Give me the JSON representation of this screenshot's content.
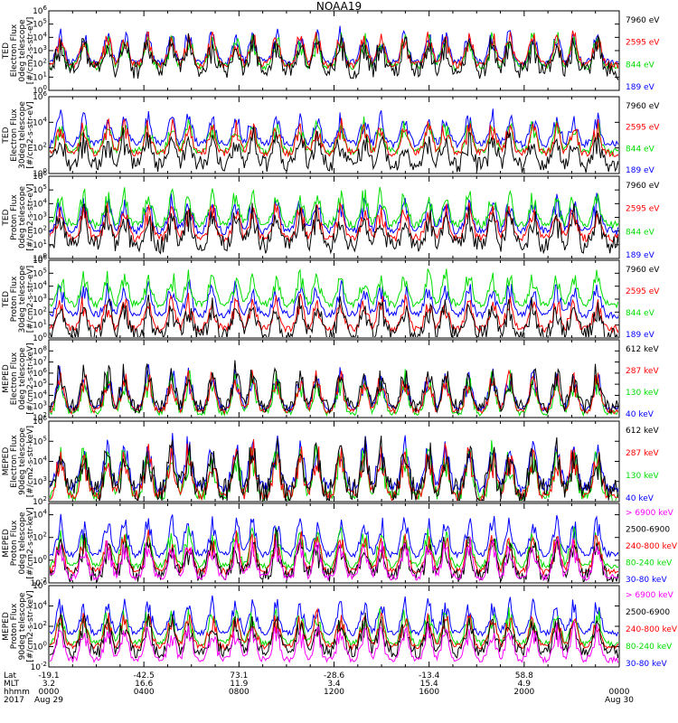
{
  "title": "NOAA19",
  "colors": {
    "black": "#000000",
    "red": "#ff0000",
    "green": "#00dd00",
    "blue": "#0000ff",
    "magenta": "#ff00ff"
  },
  "chart_data": [
    {
      "type": "line",
      "instrument": "TED",
      "ylabel": [
        "TED",
        "Electron Flux",
        "0deg telescope",
        "[#/cm2-s-str-eV]"
      ],
      "yscale": "log",
      "ylim": [
        1,
        1000000
      ],
      "y_ticks": [
        "10^0",
        "10^1",
        "10^2",
        "10^3",
        "10^4",
        "10^5",
        "10^6"
      ],
      "series": [
        {
          "name": "7960 eV",
          "color": "black",
          "base": 30
        },
        {
          "name": "2595 eV",
          "color": "red",
          "base": 80
        },
        {
          "name": "844 eV",
          "color": "green",
          "base": 60
        },
        {
          "name": "189 eV",
          "color": "blue",
          "base": 120
        }
      ]
    },
    {
      "type": "line",
      "instrument": "TED",
      "ylabel": [
        "TED",
        "Electron Flux",
        "30deg telescope",
        "[#/cm2-s-str-eV]"
      ],
      "yscale": "log",
      "ylim": [
        1,
        1000000
      ],
      "y_ticks": [
        "10^0",
        "10^2",
        "10^4",
        "10^6"
      ],
      "series": [
        {
          "name": "7960 eV",
          "color": "black",
          "base": 5
        },
        {
          "name": "2595 eV",
          "color": "red",
          "base": 40
        },
        {
          "name": "844 eV",
          "color": "green",
          "base": 50
        },
        {
          "name": "189 eV",
          "color": "blue",
          "base": 200
        }
      ]
    },
    {
      "type": "line",
      "instrument": "TED",
      "ylabel": [
        "TED",
        "Proton Flux",
        "0deg telescope",
        "[#/cm2-s-str-eV]"
      ],
      "yscale": "log",
      "ylim": [
        1,
        1000000
      ],
      "y_ticks": [
        "10^0",
        "10^1",
        "10^2",
        "10^3",
        "10^4",
        "10^5",
        "10^6"
      ],
      "series": [
        {
          "name": "7960 eV",
          "color": "black",
          "base": 10
        },
        {
          "name": "2595 eV",
          "color": "red",
          "base": 30
        },
        {
          "name": "844 eV",
          "color": "green",
          "base": 300
        },
        {
          "name": "189 eV",
          "color": "blue",
          "base": 100
        }
      ]
    },
    {
      "type": "line",
      "instrument": "TED",
      "ylabel": [
        "TED",
        "Proton Flux",
        "30deg telescope",
        "[#/cm2-s-str-eV]"
      ],
      "yscale": "log",
      "ylim": [
        1,
        1000000
      ],
      "y_ticks": [
        "10^0",
        "10^1",
        "10^2",
        "10^3",
        "10^4",
        "10^5",
        "10^6"
      ],
      "series": [
        {
          "name": "7960 eV",
          "color": "black",
          "base": 2
        },
        {
          "name": "2595 eV",
          "color": "red",
          "base": 5
        },
        {
          "name": "844 eV",
          "color": "green",
          "base": 400
        },
        {
          "name": "189 eV",
          "color": "blue",
          "base": 60
        }
      ]
    },
    {
      "type": "line",
      "instrument": "MEPED",
      "ylabel": [
        "MEPED",
        "Electron Flux",
        "0deg telescope",
        "[#/cm2-s-str-keV]"
      ],
      "yscale": "log",
      "ylim": [
        100,
        1000000000
      ],
      "y_ticks": [
        "10^2",
        "10^3",
        "10^4",
        "10^5",
        "10^6",
        "10^7",
        "10^8"
      ],
      "series": [
        {
          "name": "612 keV",
          "color": "black",
          "base": 1000
        },
        {
          "name": "287 keV",
          "color": "red",
          "base": 400
        },
        {
          "name": "130 keV",
          "color": "green",
          "base": 250
        },
        {
          "name": "40 keV",
          "color": "blue",
          "base": 600
        }
      ]
    },
    {
      "type": "line",
      "instrument": "MEPED",
      "ylabel": [
        "MEPED",
        "Electron Flux",
        "90deg telescope",
        "[#/cm2-s-str-keV]"
      ],
      "yscale": "log",
      "ylim": [
        100,
        1000000
      ],
      "y_ticks": [
        "10^2",
        "10^3",
        "10^4",
        "10^5",
        "10^6"
      ],
      "series": [
        {
          "name": "612 keV",
          "color": "black",
          "base": 300
        },
        {
          "name": "287 keV",
          "color": "red",
          "base": 200
        },
        {
          "name": "130 keV",
          "color": "green",
          "base": 180
        },
        {
          "name": "40 keV",
          "color": "blue",
          "base": 500
        }
      ]
    },
    {
      "type": "line",
      "instrument": "MEPED",
      "ylabel": [
        "MEPED",
        "Proton Flux",
        "0deg telescope",
        "[#/cm2-s-str-keV]"
      ],
      "yscale": "log",
      "ylim": [
        0.01,
        100000
      ],
      "y_ticks": [
        "10^-2",
        "10^0",
        "10^2",
        "10^4"
      ],
      "series": [
        {
          "name": "> 6900 keV",
          "color": "magenta",
          "base": 0.03
        },
        {
          "name": "2500-6900",
          "color": "black",
          "base": 0.04
        },
        {
          "name": "240-800 keV",
          "color": "red",
          "base": 0.1
        },
        {
          "name": "80-240 keV",
          "color": "green",
          "base": 0.3
        },
        {
          "name": "30-80 keV",
          "color": "blue",
          "base": 3
        }
      ]
    },
    {
      "type": "line",
      "instrument": "MEPED",
      "ylabel": [
        "MEPED",
        "Proton Flux",
        "90deg telescope",
        "[#/cm2-s-str-keV]"
      ],
      "yscale": "log",
      "ylim": [
        0.01,
        1000000
      ],
      "y_ticks": [
        "10^-2",
        "10^0",
        "10^2",
        "10^4",
        "10^6"
      ],
      "series": [
        {
          "name": "> 6900 keV",
          "color": "magenta",
          "base": 0.05
        },
        {
          "name": "2500-6900",
          "color": "black",
          "base": 0.3
        },
        {
          "name": "240-800 keV",
          "color": "red",
          "base": 1
        },
        {
          "name": "80-240 keV",
          "color": "green",
          "base": 2
        },
        {
          "name": "30-80 keV",
          "color": "blue",
          "base": 20
        }
      ]
    }
  ],
  "x_axis": {
    "row_labels": [
      "Lat",
      "MLT",
      "hhmm",
      "2017"
    ],
    "ticks": [
      {
        "lat": "-19.1",
        "mlt": "3.2",
        "hhmm": "0000",
        "date": "Aug 29"
      },
      {
        "lat": "-42.5",
        "mlt": "16.6",
        "hhmm": "0400",
        "date": ""
      },
      {
        "lat": "73.1",
        "mlt": "11.9",
        "hhmm": "0800",
        "date": ""
      },
      {
        "lat": "-28.6",
        "mlt": "3.4",
        "hhmm": "1200",
        "date": ""
      },
      {
        "lat": "-13.4",
        "mlt": "15.4",
        "hhmm": "1600",
        "date": ""
      },
      {
        "lat": "58.8",
        "mlt": "4.9",
        "hhmm": "2000",
        "date": ""
      },
      {
        "lat": "",
        "mlt": "",
        "hhmm": "0000",
        "date": "Aug 30"
      }
    ]
  }
}
